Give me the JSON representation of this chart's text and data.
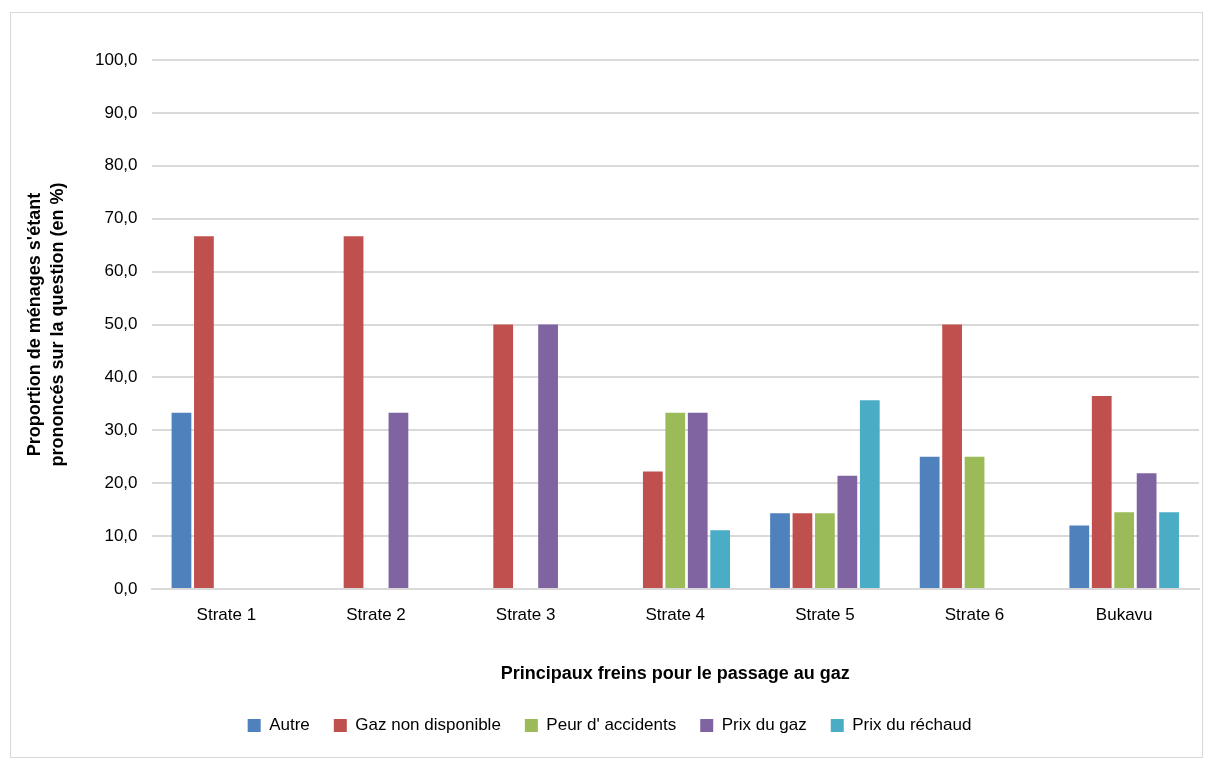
{
  "chart_data": {
    "type": "bar",
    "xlabel": "Principaux freins pour le passage au gaz",
    "ylabel": "Proportion de ménages s'étant prononcés sur la question (en %)",
    "categories": [
      "Strate 1",
      "Strate 2",
      "Strate 3",
      "Strate 4",
      "Strate 5",
      "Strate 6",
      "Bukavu"
    ],
    "series": [
      {
        "name": "Autre",
        "color": "#4f81bd",
        "values": [
          33.3,
          null,
          null,
          null,
          14.3,
          25.0,
          12.0
        ]
      },
      {
        "name": "Gaz non disponible",
        "color": "#c0504d",
        "values": [
          66.7,
          66.7,
          50.0,
          22.2,
          14.3,
          50.0,
          36.5
        ]
      },
      {
        "name": "Peur d' accidents",
        "color": "#9bbb59",
        "values": [
          null,
          null,
          null,
          33.3,
          14.3,
          25.0,
          14.5
        ]
      },
      {
        "name": "Prix du gaz",
        "color": "#8064a2",
        "values": [
          null,
          33.3,
          50.0,
          33.3,
          21.4,
          null,
          21.9
        ]
      },
      {
        "name": "Prix du réchaud",
        "color": "#4bacc6",
        "values": [
          null,
          null,
          null,
          11.1,
          35.7,
          null,
          14.5
        ]
      }
    ],
    "ylim": [
      0,
      100
    ],
    "yticks": [
      {
        "value": 0,
        "label": "0,0"
      },
      {
        "value": 10,
        "label": "10,0"
      },
      {
        "value": 20,
        "label": "20,0"
      },
      {
        "value": 30,
        "label": "30,0"
      },
      {
        "value": 40,
        "label": "40,0"
      },
      {
        "value": 50,
        "label": "50,0"
      },
      {
        "value": 60,
        "label": "60,0"
      },
      {
        "value": 70,
        "label": "70,0"
      },
      {
        "value": 80,
        "label": "80,0"
      },
      {
        "value": 90,
        "label": "90,0"
      },
      {
        "value": 100,
        "label": "100,0"
      }
    ],
    "grid": "y",
    "legend": "bottom"
  }
}
